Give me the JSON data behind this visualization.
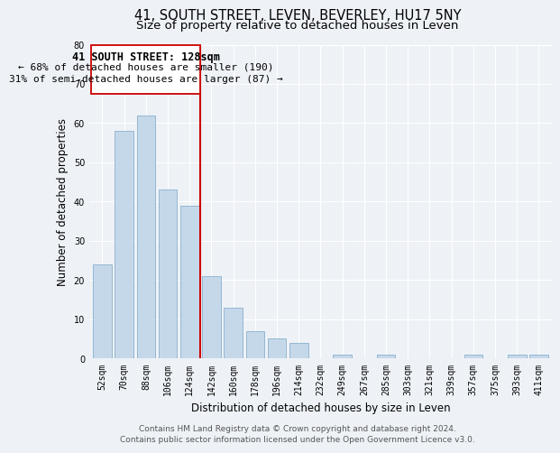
{
  "title": "41, SOUTH STREET, LEVEN, BEVERLEY, HU17 5NY",
  "subtitle": "Size of property relative to detached houses in Leven",
  "xlabel": "Distribution of detached houses by size in Leven",
  "ylabel": "Number of detached properties",
  "categories": [
    "52sqm",
    "70sqm",
    "88sqm",
    "106sqm",
    "124sqm",
    "142sqm",
    "160sqm",
    "178sqm",
    "196sqm",
    "214sqm",
    "232sqm",
    "249sqm",
    "267sqm",
    "285sqm",
    "303sqm",
    "321sqm",
    "339sqm",
    "357sqm",
    "375sqm",
    "393sqm",
    "411sqm"
  ],
  "values": [
    24,
    58,
    62,
    43,
    39,
    21,
    13,
    7,
    5,
    4,
    0,
    1,
    0,
    1,
    0,
    0,
    0,
    1,
    0,
    1,
    1
  ],
  "bar_color": "#c5d8ea",
  "bar_edge_color": "#8ab0cc",
  "vline_index": 4.5,
  "annotation_title": "41 SOUTH STREET: 128sqm",
  "annotation_line1": "← 68% of detached houses are smaller (190)",
  "annotation_line2": "31% of semi-detached houses are larger (87) →",
  "vline_color": "#cc0000",
  "annotation_box_color": "#ffffff",
  "annotation_box_edge": "#cc0000",
  "ylim": [
    0,
    80
  ],
  "yticks": [
    0,
    10,
    20,
    30,
    40,
    50,
    60,
    70,
    80
  ],
  "footer1": "Contains HM Land Registry data © Crown copyright and database right 2024.",
  "footer2": "Contains public sector information licensed under the Open Government Licence v3.0.",
  "bg_color": "#eef2f7",
  "plot_bg_color": "#eef2f7",
  "title_fontsize": 10.5,
  "subtitle_fontsize": 9.5,
  "axis_label_fontsize": 8.5,
  "tick_fontsize": 7,
  "footer_fontsize": 6.5,
  "annotation_title_fontsize": 8.5,
  "annotation_text_fontsize": 8
}
